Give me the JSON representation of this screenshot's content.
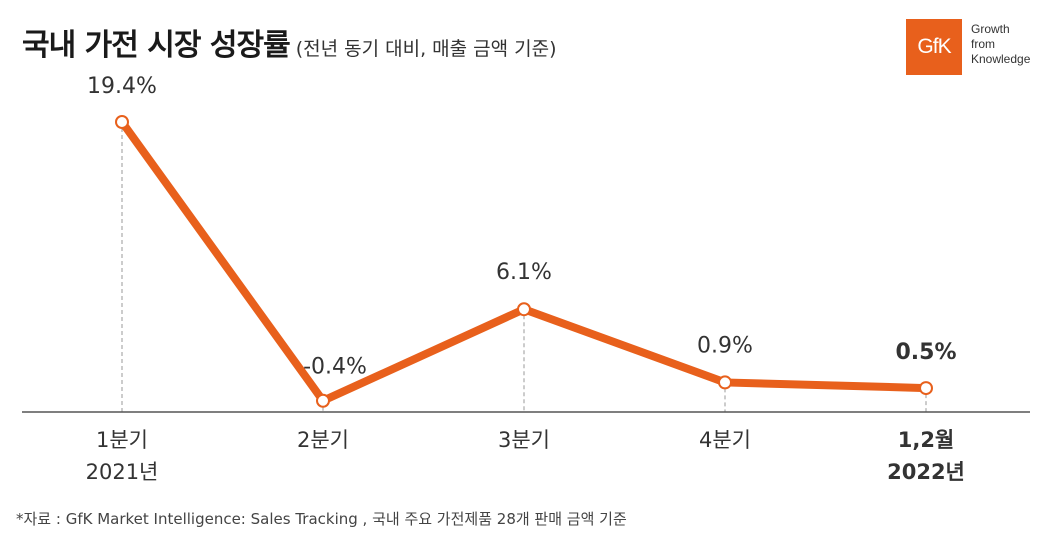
{
  "header": {
    "title": "국내 가전 시장 성장률",
    "subtitle": "(전년 동기 대비, 매출 금액 기준)"
  },
  "logo": {
    "text": "GfK",
    "tagline": [
      "Growth",
      "from",
      "Knowledge"
    ],
    "color": "#e8601c"
  },
  "footnote": "*자료 : GfK Market Intelligence: Sales Tracking , 국내 주요 가전제품 28개 판매 금액 기준",
  "chart_data": {
    "type": "line",
    "categories": [
      {
        "line1": "1분기",
        "line2": "2021년",
        "bold": false
      },
      {
        "line1": "2분기",
        "line2": "",
        "bold": false
      },
      {
        "line1": "3분기",
        "line2": "",
        "bold": false
      },
      {
        "line1": "4분기",
        "line2": "",
        "bold": false
      },
      {
        "line1": "1,2월",
        "line2": "2022년",
        "bold": true
      }
    ],
    "values": [
      19.4,
      -0.4,
      6.1,
      0.9,
      0.5
    ],
    "data_labels": [
      "19.4%",
      "-0.4%",
      "6.1%",
      "0.9%",
      "0.5%"
    ],
    "label_bold": [
      false,
      false,
      false,
      false,
      true
    ],
    "ylim": [
      -1.2,
      19.4
    ],
    "grid": false,
    "legend": "none",
    "line_color": "#e8601c"
  }
}
